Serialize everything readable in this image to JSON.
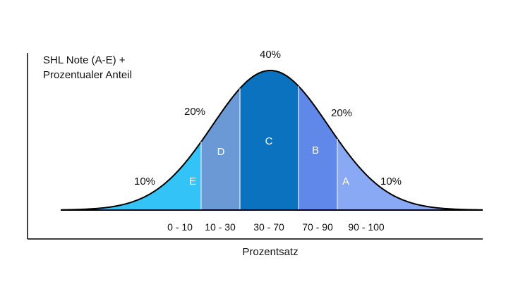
{
  "chart_data": {
    "type": "area",
    "title_lines": [
      "SHL Note (A-E) +",
      "Prozentualer Anteil"
    ],
    "xlabel": "Prozentsatz",
    "ylabel": "",
    "segments": [
      {
        "grade": "E",
        "range": "0 - 10",
        "percent_label": "10%",
        "value": 10,
        "color": "#33c3f6"
      },
      {
        "grade": "D",
        "range": "10 - 30",
        "percent_label": "20%",
        "value": 20,
        "color": "#6b99d6"
      },
      {
        "grade": "C",
        "range": "30 - 70",
        "percent_label": "40%",
        "value": 40,
        "color": "#0a72be"
      },
      {
        "grade": "B",
        "range": "70 - 90",
        "percent_label": "20%",
        "value": 20,
        "color": "#5f88e8"
      },
      {
        "grade": "A",
        "range": "90 - 100",
        "percent_label": "10%",
        "value": 10,
        "color": "#8aa9f5"
      }
    ],
    "grid": false,
    "legend": "none"
  }
}
